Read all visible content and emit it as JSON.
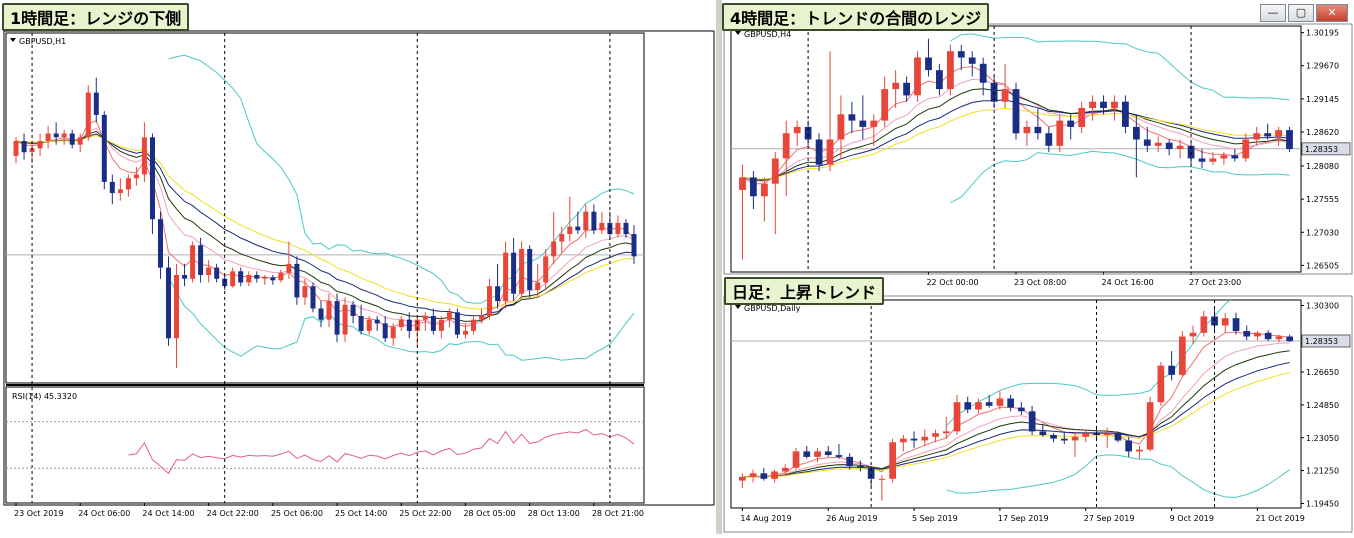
{
  "labels": {
    "h1": "1時間足：レンジの下側",
    "h4": "4時間足：トレンドの合間のレンジ",
    "d1": "日足：上昇トレンド"
  },
  "window_buttons": {
    "minimize": "—",
    "restore": "▢",
    "close": "✕"
  },
  "colors": {
    "bull": "#e8463a",
    "bear": "#1b2e86",
    "ma_fast": "#f07070",
    "ma_mid": "#1e3a0a",
    "ma_slow": "#f0a0c0",
    "ma_blue": "#1a2a7a",
    "ma_yellow": "#f0e020",
    "bb": "#4cc8c8",
    "rsi": "#e06080",
    "grid": "#000000",
    "price_line": "#b0b0b0"
  },
  "chart_data": [
    {
      "type": "candlestick",
      "symbol_label": "GBPUSD,H1",
      "x_labels": [
        "23 Oct 2019",
        "24 Oct 06:00",
        "24 Oct 14:00",
        "24 Oct 22:00",
        "25 Oct 06:00",
        "25 Oct 14:00",
        "25 Oct 22:00",
        "28 Oct 05:00",
        "28 Oct 13:00",
        "28 Oct 21:00"
      ],
      "ohlc": [
        [
          1.2905,
          1.293,
          1.2895,
          1.2925
        ],
        [
          1.2925,
          1.2935,
          1.29,
          1.291
        ],
        [
          1.291,
          1.292,
          1.2895,
          1.2915
        ],
        [
          1.2915,
          1.2935,
          1.2905,
          1.2925
        ],
        [
          1.2925,
          1.2945,
          1.2915,
          1.2935
        ],
        [
          1.2935,
          1.295,
          1.292,
          1.293
        ],
        [
          1.293,
          1.294,
          1.292,
          1.2935
        ],
        [
          1.2935,
          1.294,
          1.2915,
          1.292
        ],
        [
          1.292,
          1.2935,
          1.291,
          1.293
        ],
        [
          1.293,
          1.3,
          1.2925,
          1.299
        ],
        [
          1.299,
          1.301,
          1.295,
          1.296
        ],
        [
          1.296,
          1.2965,
          1.286,
          1.287
        ],
        [
          1.287,
          1.288,
          1.284,
          1.2855
        ],
        [
          1.2855,
          1.2875,
          1.2845,
          1.286
        ],
        [
          1.286,
          1.288,
          1.285,
          1.2875
        ],
        [
          1.2875,
          1.289,
          1.2865,
          1.288
        ],
        [
          1.288,
          1.295,
          1.287,
          1.293
        ],
        [
          1.293,
          1.2935,
          1.28,
          1.282
        ],
        [
          1.282,
          1.283,
          1.274,
          1.2755
        ],
        [
          1.2755,
          1.277,
          1.265,
          1.266
        ],
        [
          1.266,
          1.276,
          1.262,
          1.2745
        ],
        [
          1.2745,
          1.276,
          1.273,
          1.274
        ],
        [
          1.274,
          1.279,
          1.2735,
          1.2785
        ],
        [
          1.2785,
          1.2795,
          1.2735,
          1.2745
        ],
        [
          1.2745,
          1.2765,
          1.2735,
          1.2755
        ],
        [
          1.2755,
          1.276,
          1.2735,
          1.274
        ],
        [
          1.274,
          1.2745,
          1.2725,
          1.273
        ],
        [
          1.273,
          1.2755,
          1.2728,
          1.275
        ],
        [
          1.275,
          1.2755,
          1.273,
          1.2735
        ],
        [
          1.2735,
          1.275,
          1.273,
          1.2745
        ],
        [
          1.2745,
          1.275,
          1.2735,
          1.274
        ],
        [
          1.274,
          1.2745,
          1.2732,
          1.2742
        ],
        [
          1.2742,
          1.2745,
          1.2732,
          1.2738
        ],
        [
          1.2738,
          1.2752,
          1.2735,
          1.2748
        ],
        [
          1.2748,
          1.279,
          1.274,
          1.276
        ],
        [
          1.276,
          1.277,
          1.2705,
          1.2715
        ],
        [
          1.2715,
          1.274,
          1.2705,
          1.273
        ],
        [
          1.273,
          1.2735,
          1.2695,
          1.27
        ],
        [
          1.27,
          1.271,
          1.2675,
          1.2685
        ],
        [
          1.2685,
          1.272,
          1.2675,
          1.271
        ],
        [
          1.271,
          1.272,
          1.2655,
          1.2665
        ],
        [
          1.2665,
          1.2715,
          1.2655,
          1.2705
        ],
        [
          1.2705,
          1.271,
          1.268,
          1.269
        ],
        [
          1.269,
          1.2705,
          1.2665,
          1.267
        ],
        [
          1.267,
          1.269,
          1.2665,
          1.2685
        ],
        [
          1.2685,
          1.269,
          1.267,
          1.268
        ],
        [
          1.268,
          1.269,
          1.2655,
          1.266
        ],
        [
          1.266,
          1.268,
          1.265,
          1.2675
        ],
        [
          1.2675,
          1.269,
          1.267,
          1.2685
        ],
        [
          1.2685,
          1.2695,
          1.266,
          1.267
        ],
        [
          1.267,
          1.269,
          1.265,
          1.2685
        ],
        [
          1.2685,
          1.2695,
          1.267,
          1.269
        ],
        [
          1.269,
          1.27,
          1.2665,
          1.267
        ],
        [
          1.267,
          1.269,
          1.266,
          1.2685
        ],
        [
          1.2685,
          1.27,
          1.2675,
          1.2695
        ],
        [
          1.2695,
          1.27,
          1.266,
          1.2665
        ],
        [
          1.2665,
          1.268,
          1.266,
          1.267
        ],
        [
          1.267,
          1.269,
          1.2665,
          1.2685
        ],
        [
          1.2685,
          1.27,
          1.268,
          1.269
        ],
        [
          1.269,
          1.274,
          1.2685,
          1.273
        ],
        [
          1.273,
          1.276,
          1.27,
          1.271
        ],
        [
          1.271,
          1.279,
          1.27,
          1.2775
        ],
        [
          1.2775,
          1.2795,
          1.271,
          1.272
        ],
        [
          1.272,
          1.279,
          1.2715,
          1.278
        ],
        [
          1.278,
          1.2785,
          1.2715,
          1.2725
        ],
        [
          1.2725,
          1.276,
          1.2715,
          1.2735
        ],
        [
          1.2735,
          1.278,
          1.2725,
          1.277
        ],
        [
          1.277,
          1.283,
          1.276,
          1.279
        ],
        [
          1.279,
          1.281,
          1.2775,
          1.28
        ],
        [
          1.28,
          1.285,
          1.279,
          1.281
        ],
        [
          1.281,
          1.283,
          1.28,
          1.2805
        ],
        [
          1.2805,
          1.284,
          1.2795,
          1.283
        ],
        [
          1.283,
          1.284,
          1.28,
          1.2805
        ],
        [
          1.2805,
          1.283,
          1.28,
          1.2815
        ],
        [
          1.2815,
          1.283,
          1.2795,
          1.28
        ],
        [
          1.28,
          1.2825,
          1.2795,
          1.2815
        ],
        [
          1.2815,
          1.282,
          1.2795,
          1.28
        ],
        [
          1.28,
          1.2812,
          1.276,
          1.277
        ]
      ],
      "x_tick_bars": [
        0,
        8,
        16,
        24,
        32,
        40,
        48,
        56,
        64,
        72
      ],
      "separators": [
        2,
        26,
        50,
        74
      ],
      "y_range": [
        1.26,
        1.307
      ],
      "current_price": 1.2772,
      "indicator": {
        "label": "RSI(14) 45.3320",
        "levels": [
          70,
          30
        ],
        "range": [
          0,
          100
        ]
      }
    },
    {
      "type": "candlestick",
      "symbol_label": "GBPUSD,H4",
      "y_ticks": [
        "1.30195",
        "1.29670",
        "1.29145",
        "1.28620",
        "1.28353",
        "1.28080",
        "1.27555",
        "1.27030",
        "1.26505"
      ],
      "y_range": [
        1.264,
        1.303
      ],
      "current_price": 1.28353,
      "x_labels": [
        "22 Oct 00:00",
        "23 Oct 08:00",
        "24 Oct 16:00",
        "27 Oct 23:00"
      ],
      "ohlc": [
        [
          1.277,
          1.281,
          1.266,
          1.279
        ],
        [
          1.279,
          1.28,
          1.274,
          1.276
        ],
        [
          1.276,
          1.279,
          1.272,
          1.278
        ],
        [
          1.278,
          1.283,
          1.27,
          1.282
        ],
        [
          1.282,
          1.288,
          1.276,
          1.286
        ],
        [
          1.286,
          1.288,
          1.284,
          1.287
        ],
        [
          1.287,
          1.288,
          1.284,
          1.285
        ],
        [
          1.285,
          1.286,
          1.28,
          1.281
        ],
        [
          1.281,
          1.299,
          1.28,
          1.285
        ],
        [
          1.285,
          1.292,
          1.282,
          1.289
        ],
        [
          1.289,
          1.291,
          1.286,
          1.288
        ],
        [
          1.288,
          1.292,
          1.285,
          1.287
        ],
        [
          1.287,
          1.289,
          1.284,
          1.288
        ],
        [
          1.288,
          1.295,
          1.287,
          1.293
        ],
        [
          1.293,
          1.296,
          1.29,
          1.294
        ],
        [
          1.294,
          1.295,
          1.291,
          1.292
        ],
        [
          1.292,
          1.299,
          1.291,
          1.298
        ],
        [
          1.298,
          1.301,
          1.295,
          1.296
        ],
        [
          1.296,
          1.297,
          1.292,
          1.293
        ],
        [
          1.293,
          1.3,
          1.292,
          1.299
        ],
        [
          1.299,
          1.3,
          1.296,
          1.298
        ],
        [
          1.298,
          1.299,
          1.295,
          1.297
        ],
        [
          1.297,
          1.298,
          1.292,
          1.294
        ],
        [
          1.294,
          1.295,
          1.29,
          1.291
        ],
        [
          1.291,
          1.297,
          1.29,
          1.293
        ],
        [
          1.293,
          1.294,
          1.285,
          1.286
        ],
        [
          1.286,
          1.288,
          1.284,
          1.287
        ],
        [
          1.287,
          1.29,
          1.285,
          1.286
        ],
        [
          1.286,
          1.287,
          1.283,
          1.284
        ],
        [
          1.284,
          1.289,
          1.283,
          1.288
        ],
        [
          1.288,
          1.289,
          1.285,
          1.287
        ],
        [
          1.287,
          1.291,
          1.286,
          1.29
        ],
        [
          1.29,
          1.292,
          1.288,
          1.291
        ],
        [
          1.291,
          1.292,
          1.289,
          1.29
        ],
        [
          1.29,
          1.292,
          1.288,
          1.291
        ],
        [
          1.291,
          1.292,
          1.286,
          1.287
        ],
        [
          1.287,
          1.289,
          1.279,
          1.285
        ],
        [
          1.285,
          1.287,
          1.283,
          1.284
        ],
        [
          1.284,
          1.2855,
          1.283,
          1.2845
        ],
        [
          1.2845,
          1.285,
          1.2825,
          1.2835
        ],
        [
          1.2835,
          1.285,
          1.282,
          1.284
        ],
        [
          1.284,
          1.2845,
          1.281,
          1.282
        ],
        [
          1.282,
          1.2835,
          1.2805,
          1.2815
        ],
        [
          1.2815,
          1.283,
          1.281,
          1.282
        ],
        [
          1.282,
          1.283,
          1.281,
          1.2825
        ],
        [
          1.2825,
          1.2835,
          1.2815,
          1.282
        ],
        [
          1.282,
          1.286,
          1.2815,
          1.285
        ],
        [
          1.285,
          1.287,
          1.284,
          1.286
        ],
        [
          1.286,
          1.2875,
          1.285,
          1.2855
        ],
        [
          1.2855,
          1.287,
          1.284,
          1.2865
        ],
        [
          1.2865,
          1.287,
          1.283,
          1.2835
        ]
      ],
      "x_tick_bars": [
        17,
        25,
        33,
        41
      ],
      "separators": [
        6,
        23,
        41
      ]
    },
    {
      "type": "candlestick",
      "symbol_label": "GBPUSD,Daily",
      "y_ticks": [
        "1.30300",
        "1.28353",
        "1.26650",
        "1.24850",
        "1.23050",
        "1.21250",
        "1.19450"
      ],
      "y_range": [
        1.192,
        1.306
      ],
      "current_price": 1.28353,
      "x_labels": [
        "14 Aug 2019",
        "26 Aug 2019",
        "5 Sep 2019",
        "17 Sep 2019",
        "27 Sep 2019",
        "9 Oct 2019",
        "21 Oct 2019"
      ],
      "ohlc": [
        [
          1.207,
          1.211,
          1.203,
          1.209
        ],
        [
          1.209,
          1.213,
          1.206,
          1.211
        ],
        [
          1.211,
          1.214,
          1.207,
          1.208
        ],
        [
          1.208,
          1.213,
          1.206,
          1.212
        ],
        [
          1.212,
          1.216,
          1.21,
          1.214
        ],
        [
          1.214,
          1.225,
          1.213,
          1.223
        ],
        [
          1.223,
          1.226,
          1.219,
          1.22
        ],
        [
          1.22,
          1.225,
          1.217,
          1.223
        ],
        [
          1.223,
          1.226,
          1.22,
          1.221
        ],
        [
          1.221,
          1.227,
          1.219,
          1.22
        ],
        [
          1.22,
          1.222,
          1.213,
          1.215
        ],
        [
          1.215,
          1.218,
          1.212,
          1.214
        ],
        [
          1.214,
          1.215,
          1.204,
          1.208
        ],
        [
          1.208,
          1.21,
          1.196,
          1.208
        ],
        [
          1.208,
          1.23,
          1.206,
          1.228
        ],
        [
          1.228,
          1.232,
          1.223,
          1.23
        ],
        [
          1.23,
          1.234,
          1.225,
          1.229
        ],
        [
          1.229,
          1.235,
          1.226,
          1.231
        ],
        [
          1.231,
          1.235,
          1.228,
          1.233
        ],
        [
          1.233,
          1.242,
          1.23,
          1.234
        ],
        [
          1.234,
          1.254,
          1.232,
          1.25
        ],
        [
          1.25,
          1.253,
          1.244,
          1.246
        ],
        [
          1.246,
          1.252,
          1.244,
          1.25
        ],
        [
          1.25,
          1.254,
          1.247,
          1.248
        ],
        [
          1.248,
          1.256,
          1.246,
          1.252
        ],
        [
          1.252,
          1.254,
          1.245,
          1.247
        ],
        [
          1.247,
          1.25,
          1.243,
          1.245
        ],
        [
          1.245,
          1.248,
          1.232,
          1.234
        ],
        [
          1.234,
          1.238,
          1.231,
          1.232
        ],
        [
          1.232,
          1.233,
          1.228,
          1.23
        ],
        [
          1.23,
          1.234,
          1.227,
          1.229
        ],
        [
          1.229,
          1.233,
          1.22,
          1.231
        ],
        [
          1.231,
          1.235,
          1.228,
          1.233
        ],
        [
          1.233,
          1.237,
          1.23,
          1.232
        ],
        [
          1.232,
          1.236,
          1.225,
          1.233
        ],
        [
          1.233,
          1.234,
          1.228,
          1.229
        ],
        [
          1.229,
          1.231,
          1.22,
          1.223
        ],
        [
          1.223,
          1.226,
          1.219,
          1.224
        ],
        [
          1.224,
          1.253,
          1.223,
          1.25
        ],
        [
          1.25,
          1.272,
          1.248,
          1.27
        ],
        [
          1.27,
          1.278,
          1.262,
          1.265
        ],
        [
          1.265,
          1.289,
          1.264,
          1.286
        ],
        [
          1.286,
          1.292,
          1.282,
          1.288
        ],
        [
          1.288,
          1.3,
          1.286,
          1.297
        ],
        [
          1.297,
          1.301,
          1.289,
          1.292
        ],
        [
          1.292,
          1.299,
          1.288,
          1.296
        ],
        [
          1.296,
          1.299,
          1.287,
          1.289
        ],
        [
          1.289,
          1.292,
          1.284,
          1.286
        ],
        [
          1.286,
          1.289,
          1.284,
          1.288
        ],
        [
          1.288,
          1.2895,
          1.2835,
          1.2845
        ],
        [
          1.2845,
          1.287,
          1.283,
          1.286
        ],
        [
          1.286,
          1.287,
          1.283,
          1.2835
        ]
      ],
      "x_tick_bars": [
        0,
        8,
        16,
        24,
        32,
        40,
        48
      ],
      "separators": [
        12,
        33,
        44
      ]
    }
  ]
}
